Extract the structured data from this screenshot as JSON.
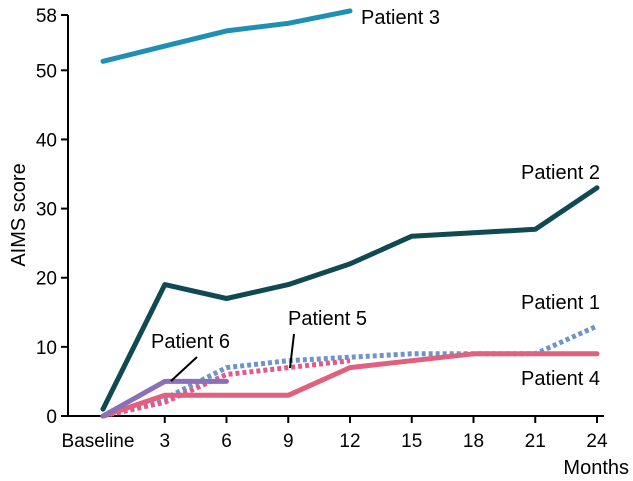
{
  "chart_data": {
    "type": "line",
    "title": "",
    "xlabel": "Months",
    "ylabel": "AIMS score",
    "x_ticks": [
      "Baseline",
      "3",
      "6",
      "9",
      "12",
      "15",
      "18",
      "21",
      "24"
    ],
    "x_tick_values": [
      0,
      3,
      6,
      9,
      12,
      15,
      18,
      21,
      24
    ],
    "y_ticks": [
      "0",
      "10",
      "20",
      "30",
      "40",
      "50",
      "58"
    ],
    "y_tick_values": [
      0,
      10,
      20,
      30,
      40,
      50,
      58
    ],
    "xlim": [
      0,
      24
    ],
    "ylim": [
      0,
      58
    ],
    "grid": false,
    "legend": "inline labels",
    "series": [
      {
        "name": "Patient 3",
        "color": "#1f8fb3",
        "style": "solid",
        "x": [
          0,
          3,
          6,
          9,
          12
        ],
        "y": [
          51.3,
          53.5,
          55.7,
          56.8,
          58.6
        ]
      },
      {
        "name": "Patient 2",
        "color": "#0f4a52",
        "style": "solid",
        "x": [
          0,
          3,
          6,
          9,
          12,
          15,
          18,
          21,
          24
        ],
        "y": [
          1,
          19,
          17,
          19,
          22,
          26,
          26.5,
          27,
          33
        ]
      },
      {
        "name": "Patient 1",
        "color": "#6f95c8",
        "style": "dotted",
        "x": [
          0,
          3,
          6,
          9,
          12,
          15,
          18,
          21,
          24
        ],
        "y": [
          0,
          2.5,
          7,
          8,
          8.5,
          9,
          9,
          9,
          13
        ]
      },
      {
        "name": "Patient 5",
        "color": "#e05a8a",
        "style": "dotted",
        "x": [
          0,
          3,
          6,
          9,
          12
        ],
        "y": [
          0,
          2,
          6,
          7,
          8
        ]
      },
      {
        "name": "Patient 4",
        "color": "#e0607e",
        "style": "solid",
        "x": [
          0,
          3,
          6,
          9,
          12,
          15,
          18,
          21,
          24
        ],
        "y": [
          0,
          3,
          3,
          3,
          7,
          8,
          9,
          9,
          9
        ]
      },
      {
        "name": "Patient 6",
        "color": "#8a70b8",
        "style": "solid",
        "x": [
          0,
          3,
          6
        ],
        "y": [
          0,
          5,
          5
        ]
      }
    ],
    "labels": [
      {
        "text": "Patient 3",
        "series": "Patient 3"
      },
      {
        "text": "Patient 2",
        "series": "Patient 2"
      },
      {
        "text": "Patient 1",
        "series": "Patient 1"
      },
      {
        "text": "Patient 4",
        "series": "Patient 4"
      },
      {
        "text": "Patient 5",
        "series": "Patient 5"
      },
      {
        "text": "Patient 6",
        "series": "Patient 6"
      }
    ]
  }
}
